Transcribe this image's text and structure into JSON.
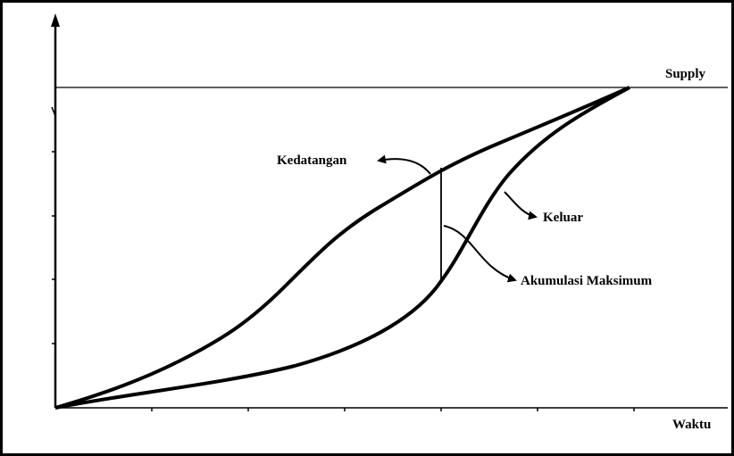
{
  "labels": {
    "supply": "Supply",
    "arrival": "Kedatangan",
    "departure": "Keluar",
    "max_accumulation": "Akumulasi Maksimum",
    "x_axis": "Waktu"
  }
}
